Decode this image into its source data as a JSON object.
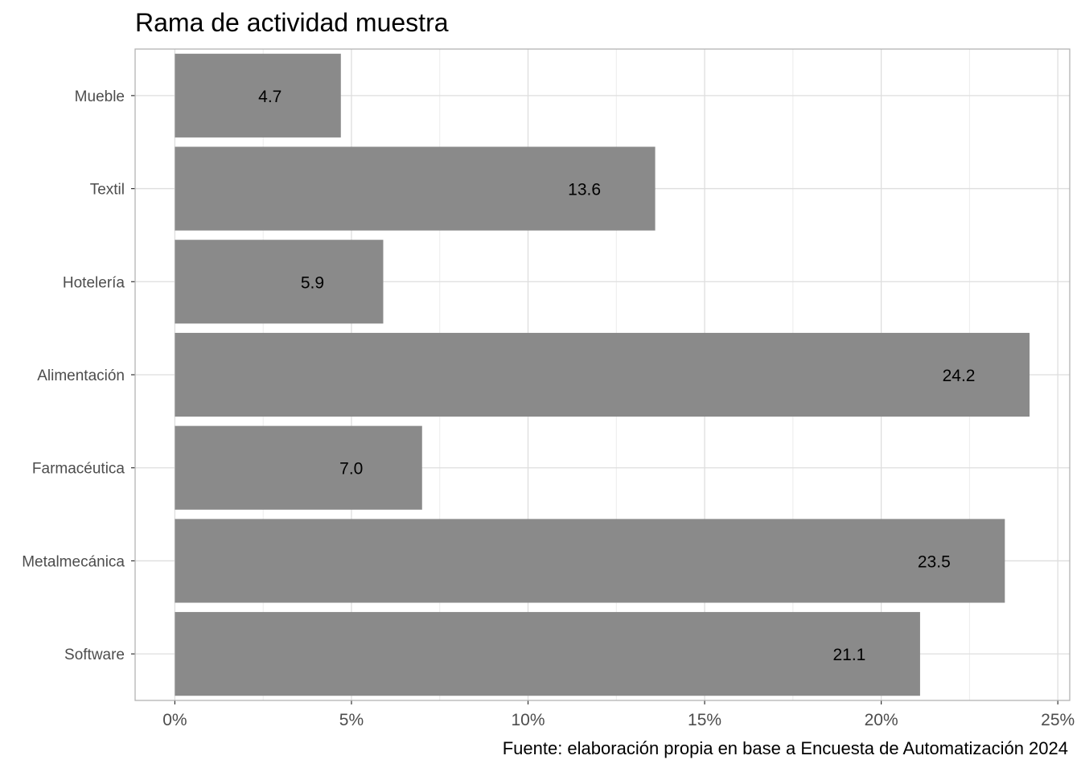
{
  "chart_data": {
    "type": "bar",
    "orientation": "horizontal",
    "title": "Rama de actividad muestra",
    "caption": "Fuente: elaboración propia en base a Encuesta de Automatización 2024",
    "xlabel": "",
    "ylabel": "",
    "categories": [
      "Mueble",
      "Textil",
      "Hotelería",
      "Alimentación",
      "Farmacéutica",
      "Metalmecánica",
      "Software"
    ],
    "values": [
      4.7,
      13.6,
      5.9,
      24.2,
      7.0,
      23.5,
      21.1
    ],
    "data_labels": [
      "4.7",
      "13.6",
      "5.9",
      "24.2",
      "7.0",
      "23.5",
      "21.1"
    ],
    "xlim": [
      0,
      25
    ],
    "xticks": [
      0,
      5,
      10,
      15,
      20,
      25
    ],
    "xtick_labels": [
      "0%",
      "5%",
      "10%",
      "15%",
      "20%",
      "25%"
    ],
    "bar_color": "#8a8a8a",
    "grid": true,
    "legend": "none"
  }
}
